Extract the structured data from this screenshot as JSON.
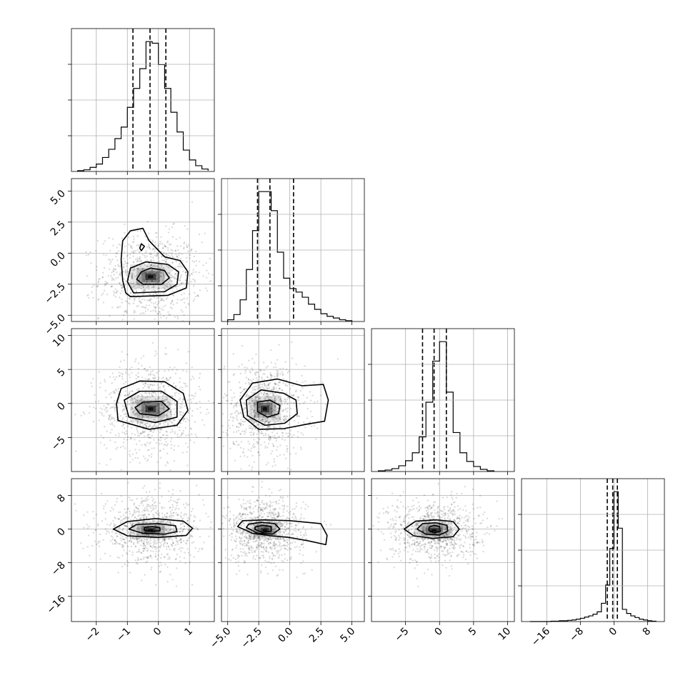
{
  "chart_data": {
    "type": "corner",
    "grid": true,
    "parameters": [
      {
        "index": 0,
        "range": [
          -2.8,
          1.8
        ],
        "ticks": [
          -2,
          -1,
          0,
          1
        ],
        "tick_labels": [
          "−2",
          "−1",
          "0",
          "1"
        ],
        "quantiles": [
          -0.82,
          -0.27,
          0.24
        ],
        "histogram_bins": [
          -2.6,
          -2.4,
          -2.2,
          -2.0,
          -1.8,
          -1.6,
          -1.4,
          -1.2,
          -1.0,
          -0.8,
          -0.6,
          -0.4,
          -0.2,
          0.0,
          0.2,
          0.4,
          0.6,
          0.8,
          1.0,
          1.2,
          1.4,
          1.6
        ],
        "histogram_counts": [
          1,
          2,
          5,
          9,
          17,
          27,
          40,
          54,
          78,
          101,
          125,
          158,
          156,
          130,
          101,
          72,
          48,
          26,
          14,
          7,
          3,
          1
        ]
      },
      {
        "index": 1,
        "range": [
          -5.5,
          6.0
        ],
        "ticks": [
          -5.0,
          -2.5,
          0.0,
          2.5,
          5.0
        ],
        "tick_labels": [
          "−5.0",
          "−2.5",
          "0.0",
          "2.5",
          "5.0"
        ],
        "quantiles": [
          -2.6,
          -1.6,
          0.3
        ],
        "histogram_bins": [
          -5.0,
          -4.5,
          -4.0,
          -3.5,
          -3.0,
          -2.5,
          -2.0,
          -1.5,
          -1.0,
          -0.5,
          0.0,
          0.5,
          1.0,
          1.5,
          2.0,
          2.5,
          3.0,
          3.5,
          4.0,
          4.5,
          5.0
        ],
        "histogram_counts": [
          2,
          8,
          25,
          60,
          105,
          150,
          150,
          128,
          80,
          50,
          38,
          34,
          28,
          20,
          14,
          9,
          6,
          4,
          2,
          1
        ]
      },
      {
        "index": 2,
        "range": [
          -10.0,
          11.0
        ],
        "ticks": [
          -5,
          0,
          5,
          10
        ],
        "tick_labels": [
          "−5",
          "0",
          "5",
          "10"
        ],
        "quantiles": [
          -2.5,
          -0.8,
          1.0
        ],
        "histogram_bins": [
          -9.0,
          -8.0,
          -7.0,
          -6.0,
          -5.0,
          -4.0,
          -3.0,
          -2.0,
          -1.0,
          0.0,
          1.0,
          2.0,
          3.0,
          4.0,
          5.0,
          6.0,
          7.0,
          8.0
        ],
        "histogram_counts": [
          1,
          2,
          4,
          8,
          15,
          26,
          48,
          96,
          153,
          180,
          110,
          54,
          26,
          14,
          7,
          3,
          1
        ]
      },
      {
        "index": 3,
        "range": [
          -22.0,
          12.0
        ],
        "ticks": [
          -16,
          -8,
          0,
          8
        ],
        "tick_labels": [
          "−16",
          "−8",
          "0",
          "8"
        ],
        "quantiles": [
          -1.6,
          -0.3,
          0.8
        ],
        "histogram_bins": [
          -20.0,
          -19.0,
          -18.0,
          -17.0,
          -16.0,
          -15.0,
          -14.0,
          -13.0,
          -12.0,
          -11.0,
          -10.0,
          -9.0,
          -8.0,
          -7.0,
          -6.0,
          -5.0,
          -4.0,
          -3.0,
          -2.0,
          -1.0,
          0.0,
          1.0,
          2.0,
          3.0,
          4.0,
          5.0,
          6.0,
          7.0,
          8.0,
          9.0,
          10.0
        ],
        "histogram_counts": [
          0,
          0,
          0,
          0,
          0,
          1,
          1,
          2,
          2,
          3,
          4,
          6,
          8,
          11,
          14,
          18,
          24,
          45,
          90,
          180,
          320,
          230,
          30,
          20,
          14,
          10,
          6,
          4,
          2,
          1
        ]
      }
    ],
    "pairs": [
      {
        "x_param": 0,
        "y_param": 1,
        "mode": [
          -0.25,
          -1.9
        ],
        "spread": [
          0.6,
          1.3
        ],
        "contours": [
          [
            [
              -0.9,
              -3.5
            ],
            [
              0.3,
              -3.4
            ],
            [
              0.9,
              -2.8
            ],
            [
              0.95,
              -1.5
            ],
            [
              0.7,
              -0.6
            ],
            [
              0.2,
              -0.3
            ],
            [
              -0.3,
              1.0
            ],
            [
              -0.5,
              2.0
            ],
            [
              -0.9,
              1.8
            ],
            [
              -1.15,
              1.0
            ],
            [
              -1.2,
              -0.5
            ],
            [
              -1.15,
              -2.2
            ],
            [
              -1.05,
              -3.2
            ]
          ],
          [
            [
              -0.8,
              -3.2
            ],
            [
              0.2,
              -3.1
            ],
            [
              0.6,
              -2.5
            ],
            [
              0.65,
              -1.5
            ],
            [
              0.3,
              -0.9
            ],
            [
              -0.4,
              -0.7
            ],
            [
              -0.9,
              -1.2
            ],
            [
              -1.0,
              -2.3
            ]
          ],
          [
            [
              -0.5,
              -2.5
            ],
            [
              0.1,
              -2.5
            ],
            [
              0.35,
              -2.0
            ],
            [
              0.2,
              -1.4
            ],
            [
              -0.25,
              -1.2
            ],
            [
              -0.55,
              -1.5
            ],
            [
              -0.7,
              -2.1
            ]
          ],
          [
            [
              -0.55,
              0.2
            ],
            [
              -0.45,
              0.55
            ],
            [
              -0.55,
              0.75
            ],
            [
              -0.6,
              0.4
            ]
          ]
        ]
      },
      {
        "x_param": 0,
        "y_param": 2,
        "mode": [
          -0.25,
          -0.8
        ],
        "spread": [
          0.6,
          2.5
        ],
        "contours": [
          [
            [
              -1.3,
              -2.5
            ],
            [
              -0.3,
              -3.8
            ],
            [
              0.6,
              -3.2
            ],
            [
              0.95,
              -1.0
            ],
            [
              0.8,
              1.5
            ],
            [
              0.2,
              3.2
            ],
            [
              -0.6,
              3.3
            ],
            [
              -1.2,
              2.2
            ],
            [
              -1.35,
              0.0
            ]
          ],
          [
            [
              -0.95,
              -2.0
            ],
            [
              -0.1,
              -2.8
            ],
            [
              0.6,
              -2.0
            ],
            [
              0.6,
              0.3
            ],
            [
              0.1,
              1.8
            ],
            [
              -0.6,
              1.8
            ],
            [
              -1.1,
              0.5
            ]
          ],
          [
            [
              -0.6,
              -1.5
            ],
            [
              0.0,
              -1.8
            ],
            [
              0.35,
              -0.8
            ],
            [
              0.1,
              0.3
            ],
            [
              -0.5,
              0.2
            ],
            [
              -0.75,
              -0.6
            ]
          ]
        ]
      },
      {
        "x_param": 1,
        "y_param": 2,
        "mode": [
          -2.0,
          -0.8
        ],
        "spread": [
          1.2,
          2.5
        ],
        "contours": [
          [
            [
              -3.7,
              -2.0
            ],
            [
              -2.5,
              -3.8
            ],
            [
              -0.5,
              -3.7
            ],
            [
              1.5,
              -3.0
            ],
            [
              2.8,
              -2.6
            ],
            [
              3.1,
              0.5
            ],
            [
              2.7,
              2.8
            ],
            [
              1.0,
              2.6
            ],
            [
              -1.0,
              3.6
            ],
            [
              -3.0,
              3.0
            ],
            [
              -4.0,
              0.5
            ]
          ],
          [
            [
              -3.4,
              -1.8
            ],
            [
              -2.0,
              -3.2
            ],
            [
              -0.4,
              -2.9
            ],
            [
              0.6,
              -1.5
            ],
            [
              0.5,
              0.5
            ],
            [
              -0.5,
              1.5
            ],
            [
              -2.3,
              2.0
            ],
            [
              -3.5,
              0.5
            ]
          ],
          [
            [
              -2.6,
              -1.2
            ],
            [
              -1.8,
              -2.0
            ],
            [
              -0.9,
              -1.5
            ],
            [
              -0.8,
              -0.3
            ],
            [
              -1.6,
              0.5
            ],
            [
              -2.6,
              0.2
            ]
          ]
        ]
      },
      {
        "x_param": 0,
        "y_param": 3,
        "mode": [
          -0.25,
          -0.3
        ],
        "spread": [
          0.6,
          2.8
        ],
        "contours": [
          [
            [
              -1.45,
              0.0
            ],
            [
              -1.0,
              -1.6
            ],
            [
              0.0,
              -2.0
            ],
            [
              0.9,
              -1.5
            ],
            [
              1.1,
              0.2
            ],
            [
              0.8,
              1.9
            ],
            [
              -0.1,
              2.5
            ],
            [
              -1.0,
              1.8
            ]
          ],
          [
            [
              -0.95,
              0.0
            ],
            [
              -0.5,
              -1.0
            ],
            [
              0.2,
              -1.2
            ],
            [
              0.6,
              -0.6
            ],
            [
              0.55,
              0.8
            ],
            [
              0.0,
              1.3
            ],
            [
              -0.7,
              1.1
            ]
          ],
          [
            [
              -0.45,
              -0.3
            ],
            [
              -0.2,
              -0.5
            ],
            [
              0.05,
              -0.4
            ],
            [
              0.05,
              0.3
            ],
            [
              -0.2,
              0.6
            ],
            [
              -0.45,
              0.4
            ]
          ]
        ]
      },
      {
        "x_param": 1,
        "y_param": 3,
        "mode": [
          -2.0,
          -0.3
        ],
        "spread": [
          1.2,
          2.8
        ],
        "contours": [
          [
            [
              -4.2,
              0.6
            ],
            [
              -3.0,
              -1.0
            ],
            [
              -1.5,
              -1.6
            ],
            [
              0.0,
              -2.0
            ],
            [
              1.5,
              -2.8
            ],
            [
              2.9,
              -3.7
            ],
            [
              3.0,
              -1.5
            ],
            [
              2.5,
              1.3
            ],
            [
              0.0,
              2.0
            ],
            [
              -2.0,
              2.2
            ],
            [
              -3.8,
              2.0
            ]
          ],
          [
            [
              -3.5,
              0.4
            ],
            [
              -2.6,
              -1.0
            ],
            [
              -1.4,
              -1.2
            ],
            [
              -0.8,
              0.0
            ],
            [
              -1.2,
              1.3
            ],
            [
              -2.3,
              1.6
            ],
            [
              -3.3,
              1.2
            ]
          ],
          [
            [
              -2.8,
              -0.1
            ],
            [
              -2.2,
              -0.8
            ],
            [
              -1.5,
              -0.5
            ],
            [
              -1.5,
              0.6
            ],
            [
              -2.2,
              0.9
            ],
            [
              -2.8,
              0.5
            ]
          ]
        ]
      },
      {
        "x_param": 2,
        "y_param": 3,
        "mode": [
          -0.8,
          -0.3
        ],
        "spread": [
          2.5,
          2.8
        ],
        "contours": [
          [
            [
              -5.2,
              0.0
            ],
            [
              -3.8,
              -1.6
            ],
            [
              -1.0,
              -2.2
            ],
            [
              2.0,
              -1.8
            ],
            [
              2.9,
              0.0
            ],
            [
              2.0,
              1.8
            ],
            [
              -0.5,
              2.2
            ],
            [
              -3.5,
              1.9
            ]
          ],
          [
            [
              -3.3,
              0.0
            ],
            [
              -2.0,
              -1.2
            ],
            [
              0.0,
              -1.4
            ],
            [
              1.2,
              -0.5
            ],
            [
              1.1,
              0.9
            ],
            [
              -0.5,
              1.5
            ],
            [
              -2.5,
              1.3
            ]
          ],
          [
            [
              -1.6,
              -0.3
            ],
            [
              -0.8,
              -0.9
            ],
            [
              0.1,
              -0.5
            ],
            [
              0.0,
              0.6
            ],
            [
              -0.8,
              0.9
            ],
            [
              -1.5,
              0.5
            ]
          ]
        ]
      }
    ]
  }
}
